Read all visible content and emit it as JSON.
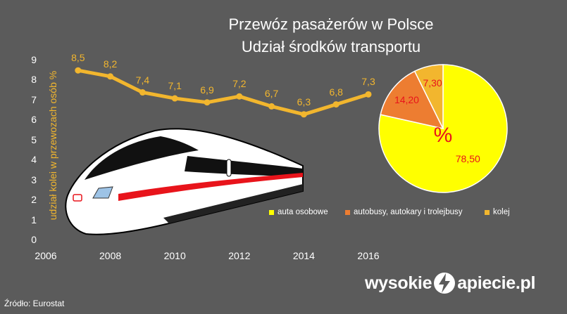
{
  "title_line1": "Przewóz pasażerów w Polsce",
  "title_line2": "Udział środków transportu",
  "source": "Źródło: Eurostat",
  "logo": {
    "left": "wysokie",
    "right": "apiecie.pl",
    "icon": "lightning-n-icon"
  },
  "colors": {
    "background": "#5b5b5b",
    "line": "#f2b62e",
    "pie_auta": "#ffff00",
    "pie_autobusy": "#ed7d31",
    "pie_kolej": "#f2b62e",
    "pie_label": "#e8141b"
  },
  "chart_data": [
    {
      "type": "line",
      "ylabel": "udział kolei w przewozach osób %",
      "xlabel": "",
      "xlim": [
        2006,
        2016
      ],
      "ylim": [
        0,
        9
      ],
      "xticks": [
        "2006",
        "2008",
        "2010",
        "2012",
        "2014",
        "2016"
      ],
      "yticks": [
        "0",
        "1",
        "2",
        "3",
        "4",
        "5",
        "6",
        "7",
        "8",
        "9"
      ],
      "x": [
        2007,
        2008,
        2009,
        2010,
        2011,
        2012,
        2013,
        2014,
        2015,
        2016
      ],
      "series": [
        {
          "values": [
            8.5,
            8.2,
            7.4,
            7.1,
            6.9,
            7.2,
            6.7,
            6.3,
            6.8,
            7.3
          ],
          "labels": [
            "8,5",
            "8,2",
            "7,4",
            "7,1",
            "6,9",
            "7,2",
            "6,7",
            "6,3",
            "6,8",
            "7,3"
          ]
        }
      ],
      "grid": false
    },
    {
      "type": "pie",
      "center_label": "%",
      "slices": [
        {
          "name": "auta osobowe",
          "value": 78.5,
          "label": "78,50",
          "color": "#ffff00"
        },
        {
          "name": "autobusy, autokary i trolejbusy",
          "value": 14.2,
          "label": "14,20",
          "color": "#ed7d31"
        },
        {
          "name": "kolej",
          "value": 7.3,
          "label": "7,30",
          "color": "#f2b62e"
        }
      ],
      "legend_position": "bottom"
    }
  ]
}
